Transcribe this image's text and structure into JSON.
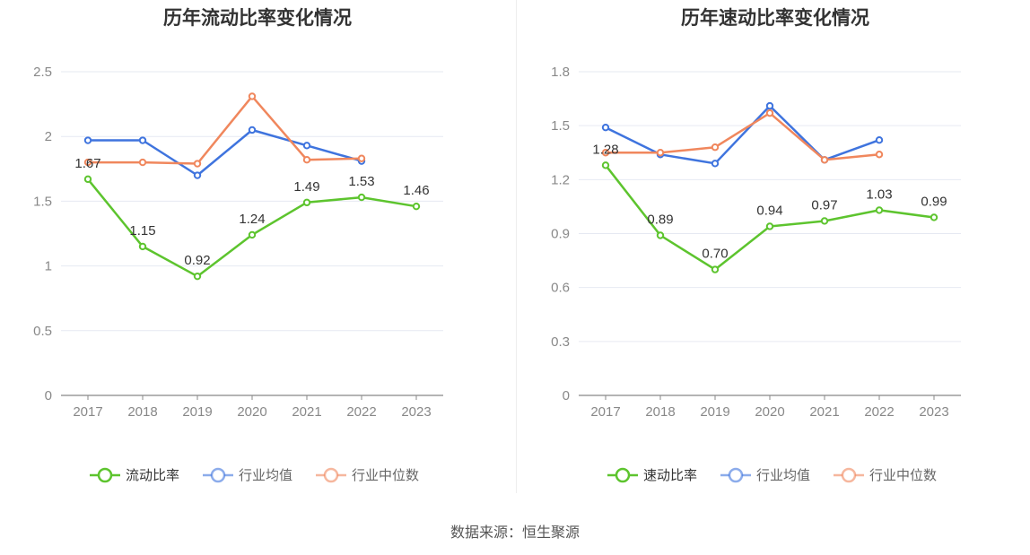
{
  "footer": {
    "source": "数据来源：恒生聚源"
  },
  "colors": {
    "own": "#5dc42e",
    "avg": "#3f74de",
    "median": "#f0875d",
    "grid": "#e6e9f2",
    "axis": "#888888",
    "tick_text": "#888888"
  },
  "chart_data": [
    {
      "type": "line",
      "title": "历年流动比率变化情况",
      "xlabel": "",
      "ylabel": "",
      "categories": [
        "2017",
        "2018",
        "2019",
        "2020",
        "2021",
        "2022",
        "2023"
      ],
      "y_ticks": [
        "0",
        "0.5",
        "1",
        "1.5",
        "2",
        "2.5"
      ],
      "ylim": [
        0,
        2.5
      ],
      "grid": true,
      "legend_position": "bottom-center",
      "series": [
        {
          "name": "流动比率",
          "color": "#5dc42e",
          "values": [
            1.67,
            1.15,
            0.92,
            1.24,
            1.49,
            1.53,
            1.46
          ],
          "labels": [
            "1.67",
            "1.15",
            "0.92",
            "1.24",
            "1.49",
            "1.53",
            "1.46"
          ]
        },
        {
          "name": "行业均值",
          "color": "#3f74de",
          "values": [
            1.97,
            1.97,
            1.7,
            2.05,
            1.93,
            1.81,
            null
          ]
        },
        {
          "name": "行业中位数",
          "color": "#f0875d",
          "values": [
            1.8,
            1.8,
            1.79,
            2.31,
            1.82,
            1.83,
            null
          ]
        }
      ]
    },
    {
      "type": "line",
      "title": "历年速动比率变化情况",
      "xlabel": "",
      "ylabel": "",
      "categories": [
        "2017",
        "2018",
        "2019",
        "2020",
        "2021",
        "2022",
        "2023"
      ],
      "y_ticks": [
        "0",
        "0.3",
        "0.6",
        "0.9",
        "1.2",
        "1.5",
        "1.8"
      ],
      "ylim": [
        0,
        1.8
      ],
      "grid": true,
      "legend_position": "bottom-center",
      "series": [
        {
          "name": "速动比率",
          "color": "#5dc42e",
          "values": [
            1.28,
            0.89,
            0.7,
            0.94,
            0.97,
            1.03,
            0.99
          ],
          "labels": [
            "1.28",
            "0.89",
            "0.70",
            "0.94",
            "0.97",
            "1.03",
            "0.99"
          ]
        },
        {
          "name": "行业均值",
          "color": "#3f74de",
          "values": [
            1.49,
            1.34,
            1.29,
            1.61,
            1.31,
            1.42,
            null
          ]
        },
        {
          "name": "行业中位数",
          "color": "#f0875d",
          "values": [
            1.35,
            1.35,
            1.38,
            1.57,
            1.31,
            1.34,
            null
          ]
        }
      ]
    }
  ]
}
